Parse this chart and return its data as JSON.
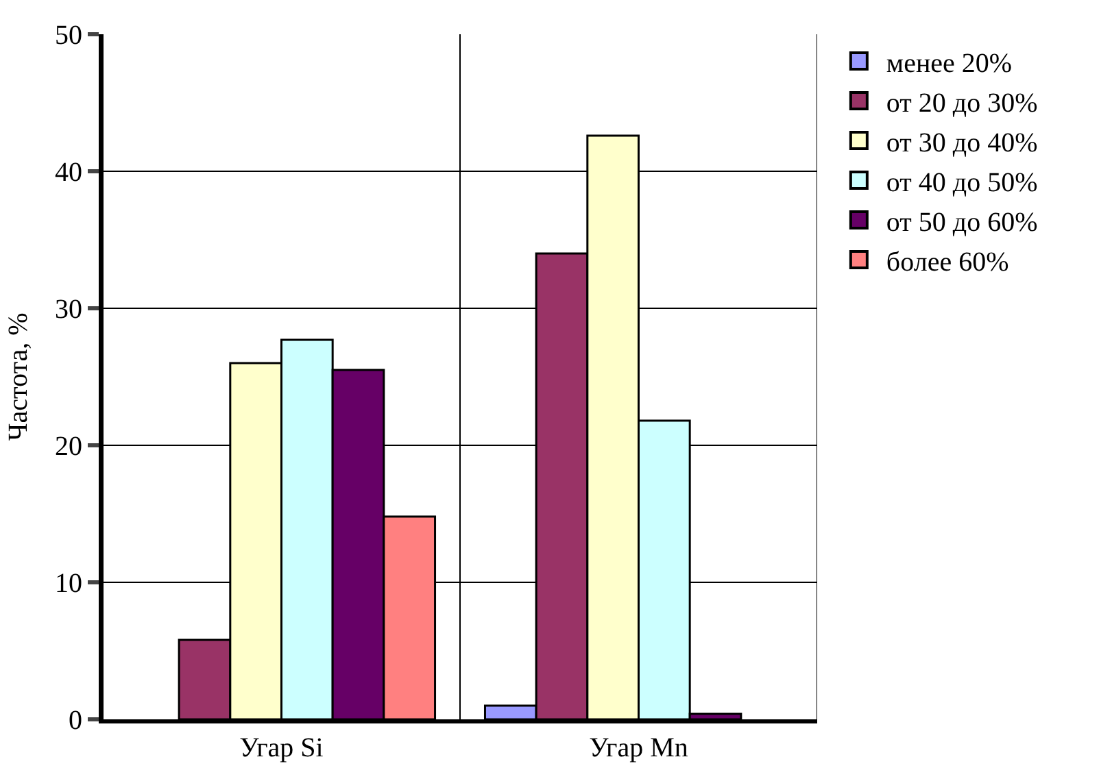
{
  "chart_data": {
    "type": "bar",
    "ylabel": "Частота, %",
    "categories": [
      "Угар Si",
      "Угар Mn"
    ],
    "series": [
      {
        "name": "менее 20%",
        "color": "#9999ff",
        "values": [
          0,
          1.0
        ]
      },
      {
        "name": "от 20 до 30%",
        "color": "#993366",
        "values": [
          5.8,
          34.0
        ]
      },
      {
        "name": "от 30 до 40%",
        "color": "#ffffcc",
        "values": [
          26.0,
          42.6
        ]
      },
      {
        "name": "от 40 до 50%",
        "color": "#ccffff",
        "values": [
          27.7,
          21.8
        ]
      },
      {
        "name": "от 50 до 60%",
        "color": "#660066",
        "values": [
          25.5,
          0.4
        ]
      },
      {
        "name": "более 60%",
        "color": "#ff8080",
        "values": [
          14.8,
          0
        ]
      }
    ],
    "ylim": [
      0,
      50
    ],
    "yticks": [
      0,
      10,
      20,
      30,
      40,
      50
    ],
    "grid": true,
    "legend": "right"
  }
}
